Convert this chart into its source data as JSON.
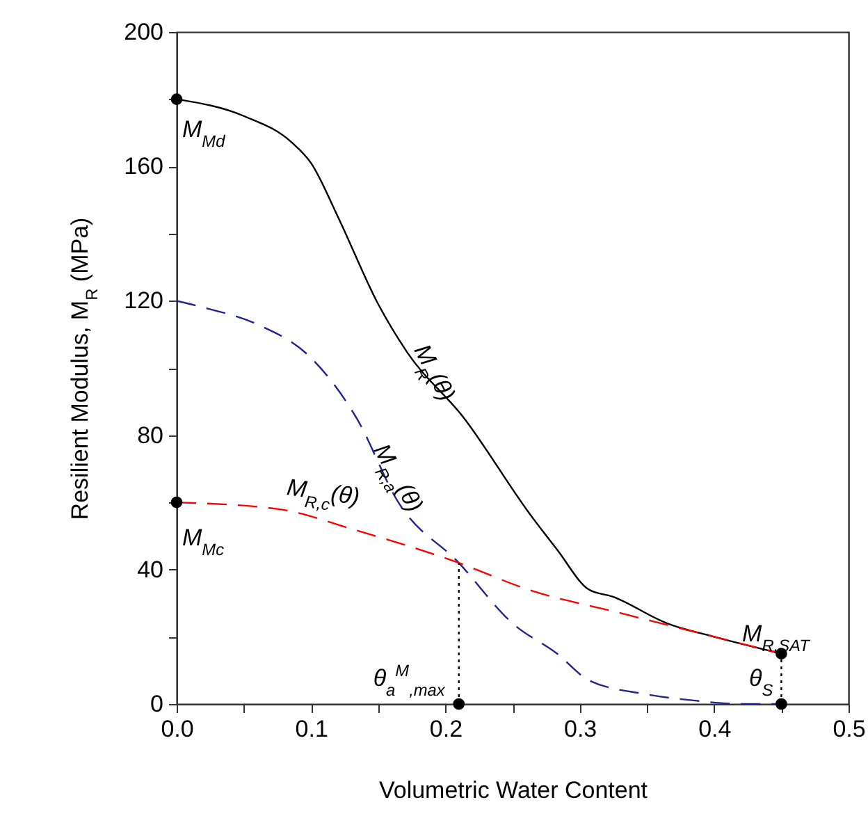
{
  "chart_data": {
    "type": "line",
    "xlabel": "Volumetric Water Content",
    "ylabel": "Resilient Modulus, M$_{R}$ (MPa)",
    "xlim": [
      0,
      0.5
    ],
    "ylim": [
      0,
      200
    ],
    "xticks": [
      {
        "value": 0,
        "label": "0.0"
      },
      {
        "value": 0.05,
        "label": null
      },
      {
        "value": 0.1,
        "label": "0.1"
      },
      {
        "value": 0.15,
        "label": null
      },
      {
        "value": 0.2,
        "label": "0.2"
      },
      {
        "value": 0.25,
        "label": null
      },
      {
        "value": 0.3,
        "label": "0.3"
      },
      {
        "value": 0.35,
        "label": null
      },
      {
        "value": 0.4,
        "label": "0.4"
      },
      {
        "value": 0.45,
        "label": null
      },
      {
        "value": 0.5,
        "label": "0.5"
      }
    ],
    "yticks": [
      0,
      {
        "value": 20,
        "label": null
      },
      40,
      {
        "value": 60,
        "label": null
      },
      80,
      {
        "value": 100,
        "label": null
      },
      120,
      {
        "value": 140,
        "label": null
      },
      160,
      {
        "value": 180,
        "label": null
      },
      200
    ],
    "series": [
      {
        "color": "#000000",
        "line_style": "solid",
        "x": [
          0,
          0.05,
          0.086,
          0.1,
          0.12,
          0.15,
          0.171,
          0.214,
          0.262,
          0.283,
          0.307,
          0.324,
          0.365,
          0.4,
          0.45
        ],
        "values": [
          180,
          175,
          167,
          161,
          145,
          119,
          105,
          85,
          57,
          46,
          34,
          32,
          24,
          20,
          15
        ]
      },
      {
        "color": "#22228c",
        "line_style": "dashed",
        "x": [
          0,
          0.02,
          0.06,
          0.1,
          0.134,
          0.165,
          0.21,
          0.25,
          0.283,
          0.307,
          0.348,
          0.386,
          0.42,
          0.45
        ],
        "values": [
          120,
          118,
          113,
          103,
          85,
          60,
          42,
          24,
          15,
          7,
          3,
          1,
          0,
          0
        ]
      },
      {
        "color": "#ff0000",
        "line_style": "dashed",
        "x": [
          0,
          0.076,
          0.131,
          0.21,
          0.262,
          0.331,
          0.4,
          0.45
        ],
        "values": [
          60,
          58,
          52,
          42,
          34,
          27,
          20,
          15
        ]
      },
      {
        "color": "#000000",
        "line_style": "dotted",
        "x": [
          0.21,
          0.21
        ],
        "values": [
          0,
          42
        ]
      },
      {
        "color": "#000000",
        "line_style": "dotted",
        "x": [
          0.45,
          0.45
        ],
        "values": [
          0,
          15
        ]
      },
      {
        "type": "scatter",
        "color": "#000000",
        "marker": "circle",
        "x": [
          0,
          0,
          0.21,
          0.45,
          0.45
        ],
        "values": [
          180,
          60,
          0,
          15,
          0
        ]
      }
    ],
    "annotations": [
      {
        "text": "M$_{Md}$",
        "x": 0,
        "y": 180
      },
      {
        "text": "M$_{R}$(θ)",
        "x": 0.165,
        "y": 106
      },
      {
        "text": "M$_{R,a}$(θ)",
        "x": 0.134,
        "y": 85
      },
      {
        "text": "M$_{R,c}$(θ)",
        "x": 0.1,
        "y": 55
      },
      {
        "text": "M$_{Mc}$",
        "x": 0,
        "y": 60
      },
      {
        "text": "θ$_{a}$$^{M}$$_{,max}$",
        "x": 0.21,
        "y": 0
      },
      {
        "text": "M$_{R,SAT}$",
        "x": 0.45,
        "y": 15
      },
      {
        "text": "θ$_{S}$",
        "x": 0.45,
        "y": 0
      }
    ]
  }
}
